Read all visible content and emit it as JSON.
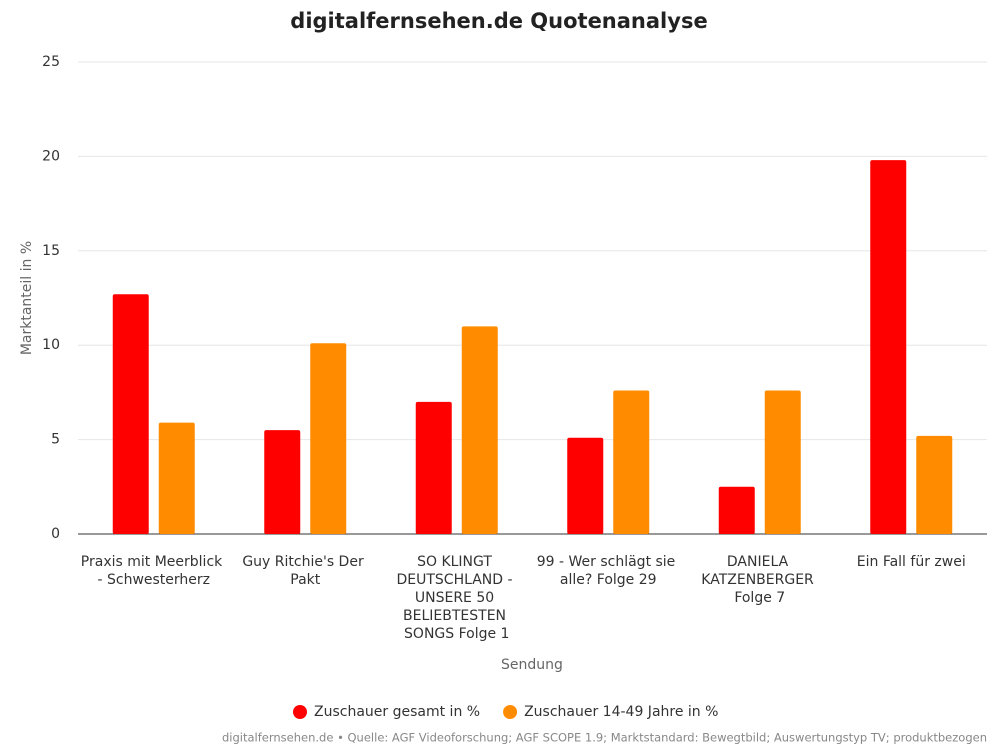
{
  "chart_data": {
    "type": "bar",
    "title": "digitalfernsehen.de Quotenanalyse",
    "x_label": "Sendung",
    "y_label": "Marktanteil in %",
    "categories": [
      "Praxis mit Meerblick - Schwesterherz",
      "Guy Ritchie's Der Pakt",
      "SO KLINGT DEUTSCHLAND - UNSERE 50 BELIEBTESTEN SONGS Folge 1",
      "99 - Wer schlägt sie alle? Folge 29",
      "DANIELA KATZENBERGER Folge 7",
      "Ein Fall für zwei"
    ],
    "series": [
      {
        "name": "Zuschauer gesamt in %",
        "color": "#ff0000",
        "values": [
          12.7,
          5.5,
          7.0,
          5.1,
          2.5,
          19.8
        ]
      },
      {
        "name": "Zuschauer 14-49 Jahre in %",
        "color": "#ff8c00",
        "values": [
          5.9,
          10.1,
          11.0,
          7.6,
          7.6,
          5.2
        ]
      }
    ],
    "ylim": [
      0,
      25
    ],
    "yticks": [
      0,
      5,
      10,
      15,
      20,
      25
    ],
    "grid": true,
    "legend": "bottom",
    "source": "digitalfernsehen.de • Quelle: AGF Videoforschung; AGF SCOPE 1.9; Marktstandard: Bewegtbild; Auswertungstyp TV; produktbezogen"
  }
}
